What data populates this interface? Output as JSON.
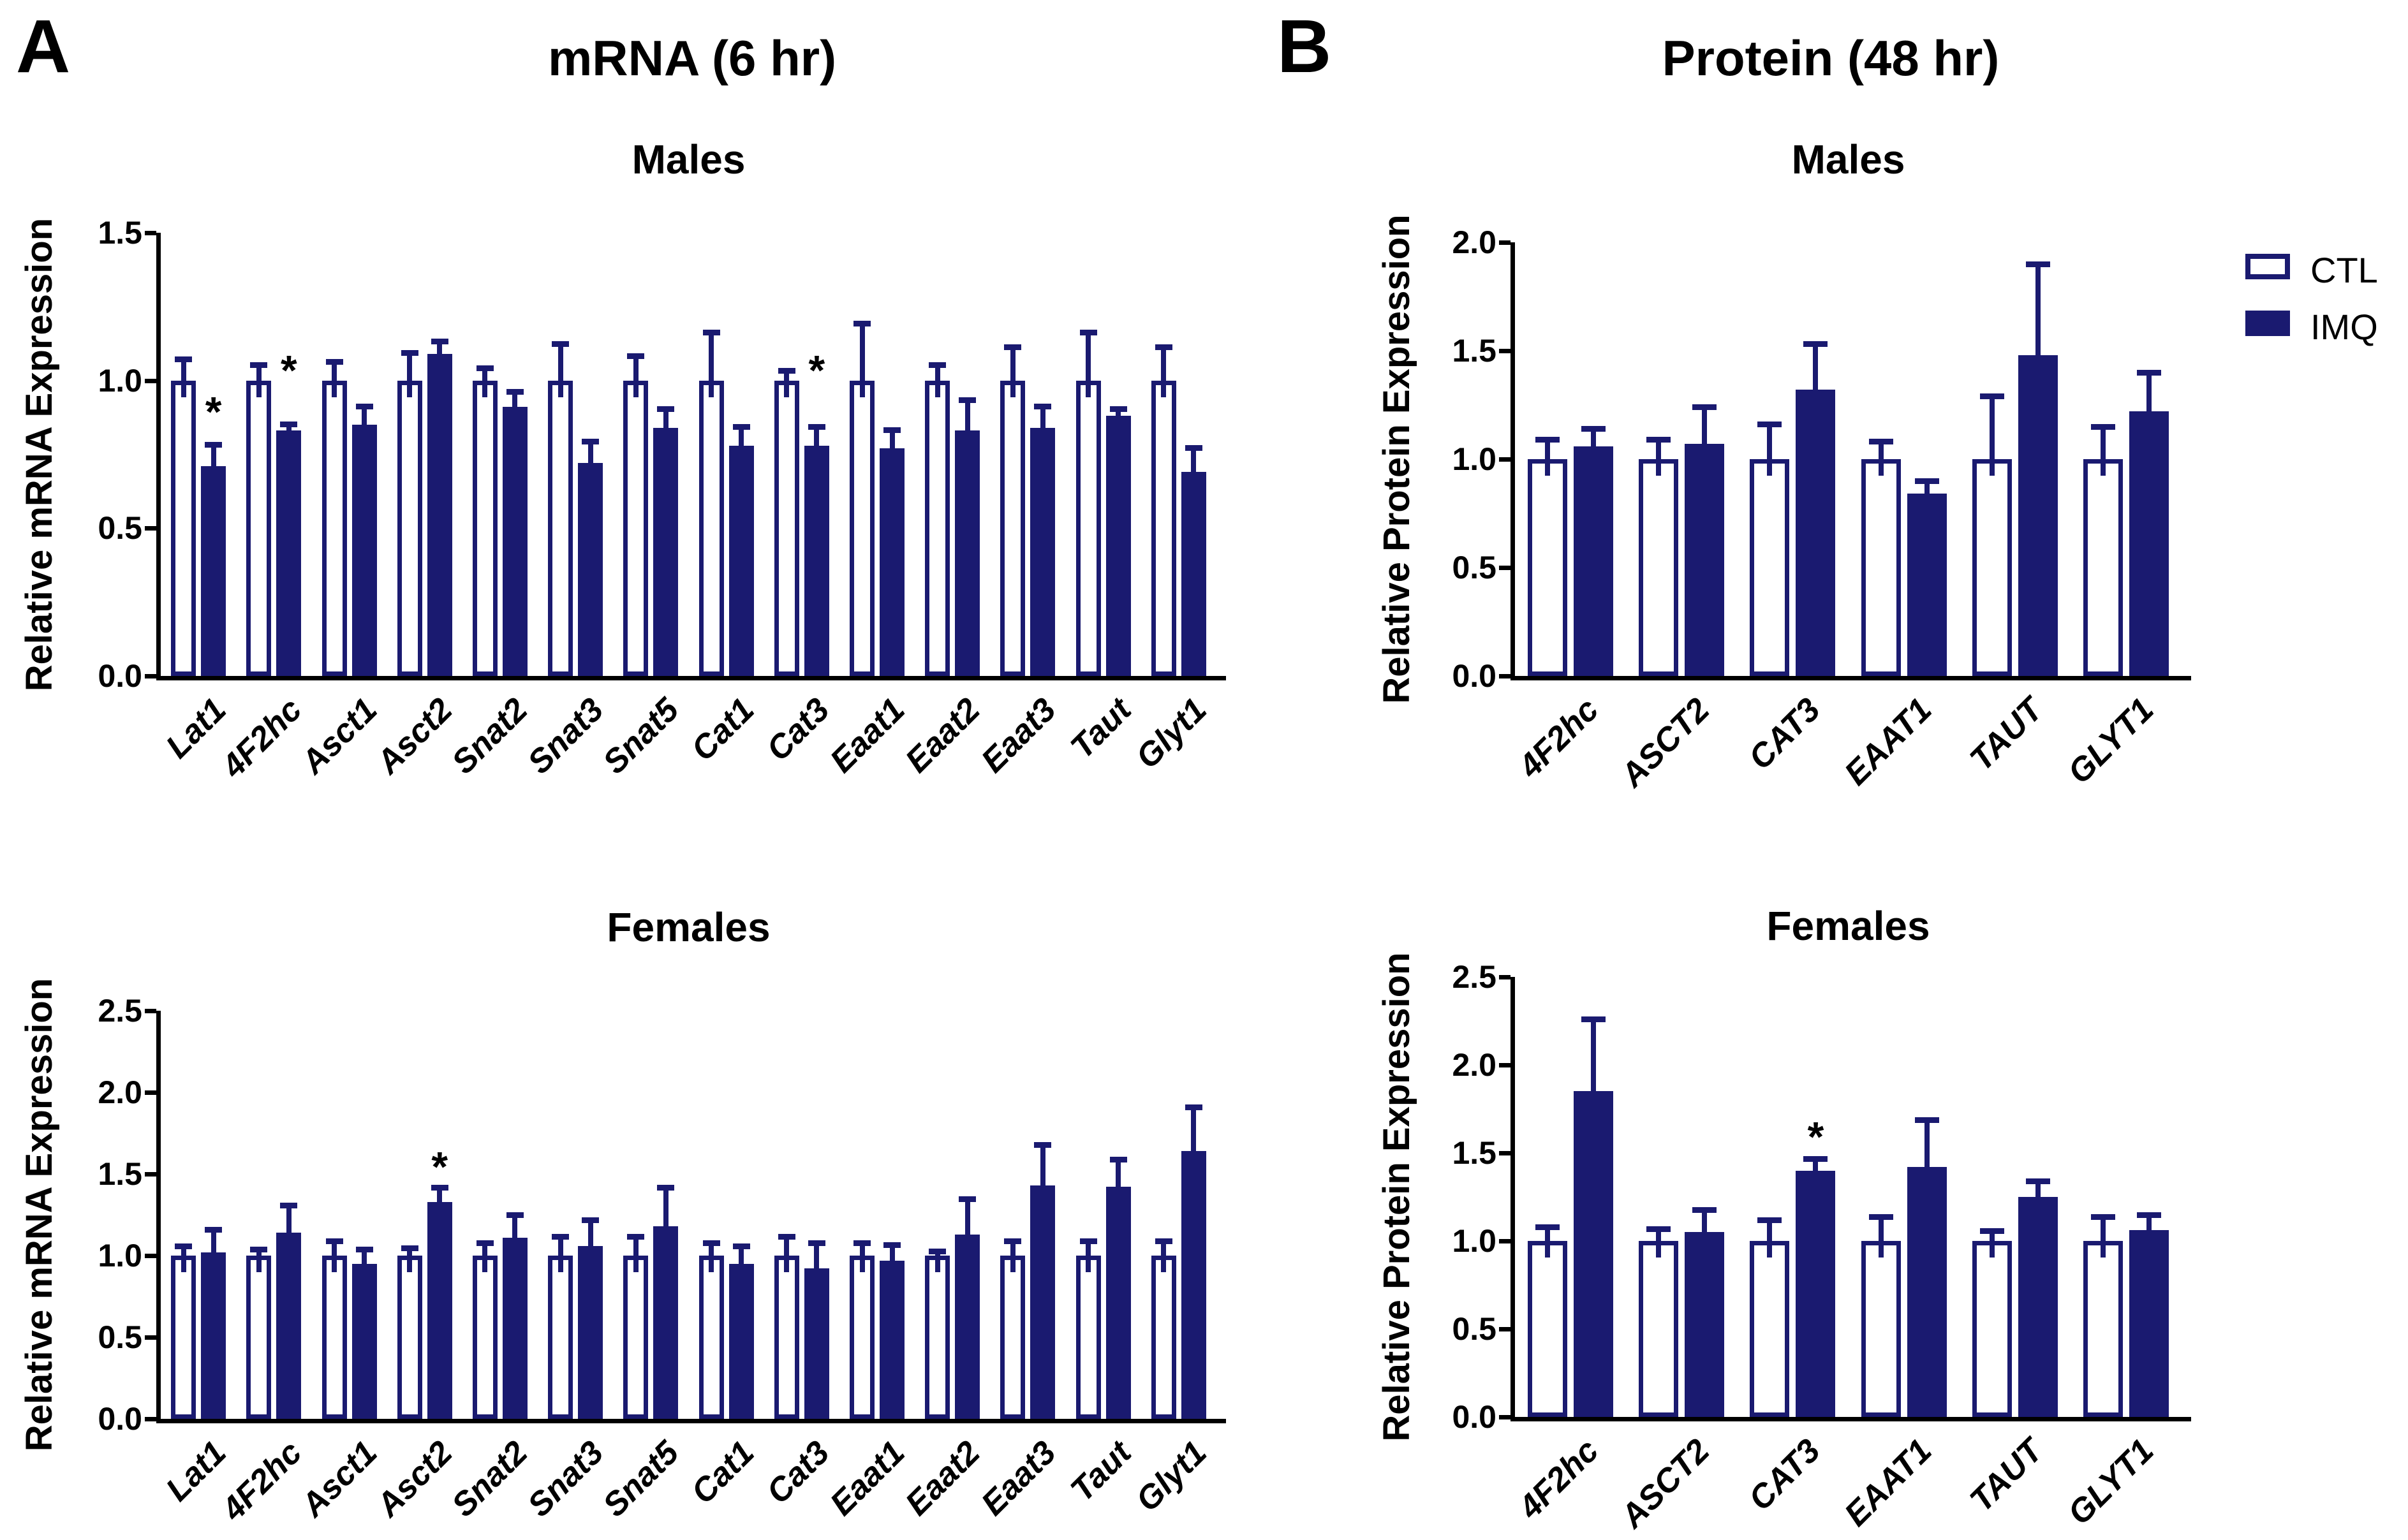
{
  "panels": {
    "a": {
      "label": "A",
      "title": "mRNA (6 hr)"
    },
    "b": {
      "label": "B",
      "title": "Protein (48 hr)"
    }
  },
  "legend": {
    "entries": [
      {
        "label": "CTL",
        "style": "open"
      },
      {
        "label": "IMQ",
        "style": "filled"
      }
    ]
  },
  "colors": {
    "navy": "#1a1a70",
    "axis": "#000000",
    "background": "#ffffff"
  },
  "chart_data": [
    {
      "id": "mrna_males",
      "type": "bar",
      "panel": "A",
      "title": "Males",
      "ylabel": "Relative mRNA Expression",
      "ylim": [
        0,
        1.5
      ],
      "yticks": [
        "0.0",
        "0.5",
        "1.0",
        "1.5"
      ],
      "grid": false,
      "categories": [
        "Lat1",
        "4F2hc",
        "Asct1",
        "Asct2",
        "Snat2",
        "Snat3",
        "Snat5",
        "Cat1",
        "Cat3",
        "Eaat1",
        "Eaat2",
        "Eaat3",
        "Taut",
        "Glyt1"
      ],
      "series": [
        {
          "name": "CTL",
          "values": [
            1.0,
            1.0,
            1.0,
            1.0,
            1.0,
            1.0,
            1.0,
            1.0,
            1.0,
            1.0,
            1.0,
            1.0,
            1.0,
            1.0
          ],
          "errors": [
            0.08,
            0.06,
            0.07,
            0.1,
            0.05,
            0.13,
            0.09,
            0.17,
            0.04,
            0.2,
            0.06,
            0.12,
            0.17,
            0.12
          ]
        },
        {
          "name": "IMQ",
          "values": [
            0.71,
            0.83,
            0.85,
            1.09,
            0.91,
            0.72,
            0.84,
            0.78,
            0.78,
            0.77,
            0.83,
            0.84,
            0.88,
            0.69
          ],
          "errors": [
            0.08,
            0.03,
            0.07,
            0.05,
            0.06,
            0.08,
            0.07,
            0.07,
            0.07,
            0.07,
            0.11,
            0.08,
            0.03,
            0.09
          ]
        }
      ],
      "sig": [
        {
          "category": "Lat1",
          "y": 0.88
        },
        {
          "category": "4F2hc",
          "y": 1.02
        },
        {
          "category": "Cat3",
          "y": 1.02
        }
      ]
    },
    {
      "id": "mrna_females",
      "type": "bar",
      "panel": "A",
      "title": "Females",
      "ylabel": "Relative mRNA Expression",
      "ylim": [
        0,
        2.5
      ],
      "yticks": [
        "0.0",
        "0.5",
        "1.0",
        "1.5",
        "2.0",
        "2.5"
      ],
      "grid": false,
      "categories": [
        "Lat1",
        "4F2hc",
        "Asct1",
        "Asct2",
        "Snat2",
        "Snat3",
        "Snat5",
        "Cat1",
        "Cat3",
        "Eaat1",
        "Eaat2",
        "Eaat3",
        "Taut",
        "Glyt1"
      ],
      "series": [
        {
          "name": "CTL",
          "values": [
            1.0,
            1.0,
            1.0,
            1.0,
            1.0,
            1.0,
            1.0,
            1.0,
            1.0,
            1.0,
            1.0,
            1.0,
            1.0,
            1.0
          ],
          "errors": [
            0.07,
            0.05,
            0.1,
            0.06,
            0.09,
            0.13,
            0.13,
            0.09,
            0.13,
            0.09,
            0.04,
            0.1,
            0.1,
            0.1
          ]
        },
        {
          "name": "IMQ",
          "values": [
            1.02,
            1.14,
            0.95,
            1.33,
            1.11,
            1.06,
            1.18,
            0.95,
            0.92,
            0.97,
            1.13,
            1.43,
            1.42,
            1.64
          ],
          "errors": [
            0.15,
            0.18,
            0.1,
            0.1,
            0.15,
            0.17,
            0.25,
            0.12,
            0.17,
            0.11,
            0.23,
            0.26,
            0.18,
            0.28
          ]
        }
      ],
      "sig": [
        {
          "category": "Asct2",
          "y": 1.52
        }
      ]
    },
    {
      "id": "protein_males",
      "type": "bar",
      "panel": "B",
      "title": "Males",
      "ylabel": "Relative Protein Expression",
      "ylim": [
        0,
        2.0
      ],
      "yticks": [
        "0.0",
        "0.5",
        "1.0",
        "1.5",
        "2.0"
      ],
      "grid": false,
      "categories": [
        "4F2hc",
        "ASCT2",
        "CAT3",
        "EAAT1",
        "TAUT",
        "GLYT1"
      ],
      "series": [
        {
          "name": "CTL",
          "values": [
            1.0,
            1.0,
            1.0,
            1.0,
            1.0,
            1.0
          ],
          "errors": [
            0.1,
            0.1,
            0.17,
            0.09,
            0.3,
            0.16
          ]
        },
        {
          "name": "IMQ",
          "values": [
            1.06,
            1.07,
            1.32,
            0.84,
            1.48,
            1.22
          ],
          "errors": [
            0.09,
            0.18,
            0.22,
            0.07,
            0.43,
            0.19
          ]
        }
      ],
      "sig": []
    },
    {
      "id": "protein_females",
      "type": "bar",
      "panel": "B",
      "title": "Females",
      "ylabel": "Relative Protein Expression",
      "ylim": [
        0,
        2.5
      ],
      "yticks": [
        "0.0",
        "0.5",
        "1.0",
        "1.5",
        "2.0",
        "2.5"
      ],
      "grid": false,
      "categories": [
        "4F2hc",
        "ASCT2",
        "CAT3",
        "EAAT1",
        "TAUT",
        "GLYT1"
      ],
      "series": [
        {
          "name": "CTL",
          "values": [
            1.0,
            1.0,
            1.0,
            1.0,
            1.0,
            1.0
          ],
          "errors": [
            0.09,
            0.08,
            0.13,
            0.15,
            0.07,
            0.15
          ]
        },
        {
          "name": "IMQ",
          "values": [
            1.85,
            1.05,
            1.4,
            1.42,
            1.25,
            1.06
          ],
          "errors": [
            0.42,
            0.14,
            0.08,
            0.28,
            0.1,
            0.1
          ]
        }
      ],
      "sig": [
        {
          "category": "CAT3",
          "y": 1.57
        }
      ]
    }
  ]
}
